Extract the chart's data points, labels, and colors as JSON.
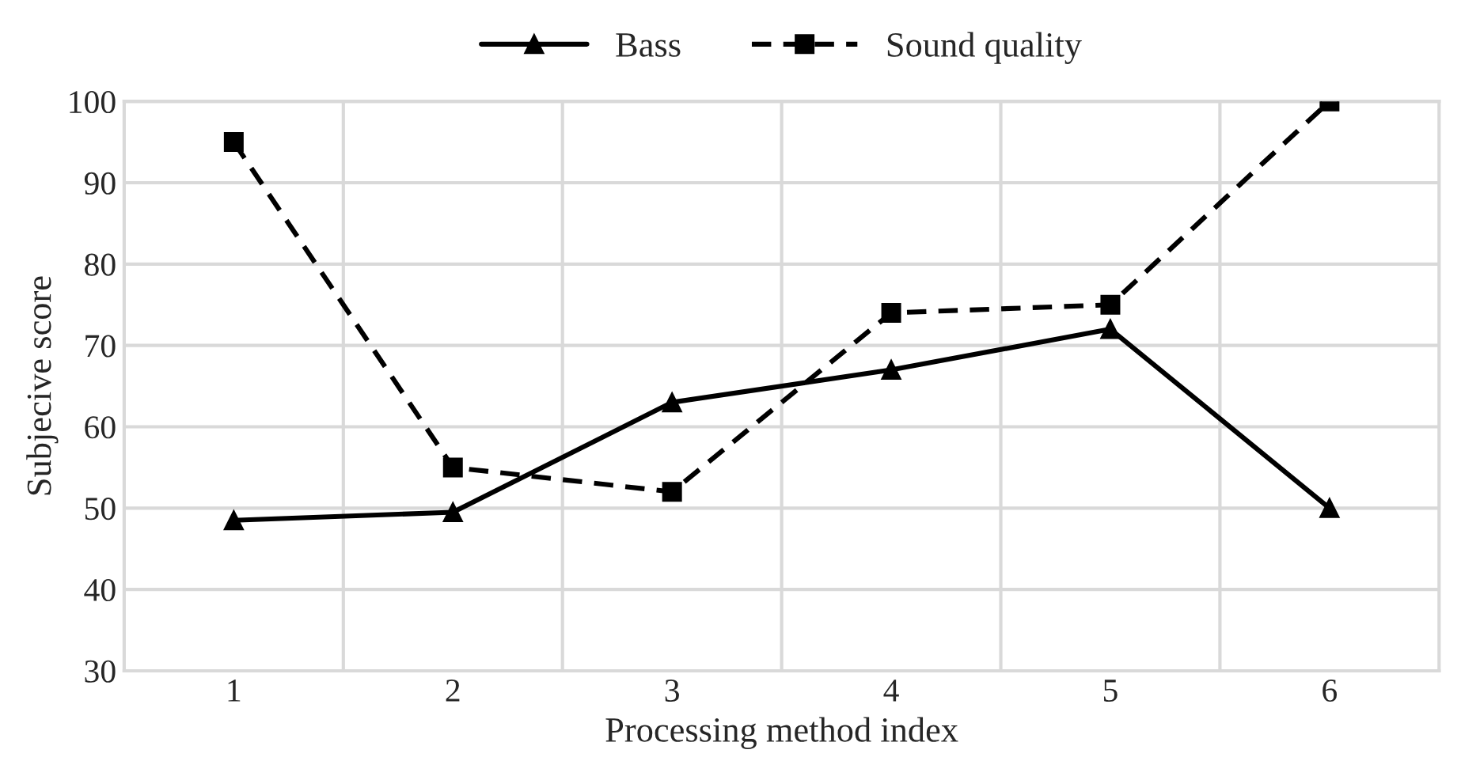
{
  "chart_data": {
    "type": "line",
    "xlabel": "Processing method index",
    "ylabel": "Subjecive score",
    "categories": [
      "1",
      "2",
      "3",
      "4",
      "5",
      "6"
    ],
    "series": [
      {
        "name": "Bass",
        "color": "#000000",
        "marker": "triangle",
        "line_style": "solid",
        "values": [
          48.5,
          49.5,
          63,
          67,
          72,
          50
        ]
      },
      {
        "name": "Sound quality",
        "color": "#000000",
        "marker": "square",
        "line_style": "dashed",
        "values": [
          95,
          55,
          52,
          74,
          75,
          100
        ]
      }
    ],
    "ylim": [
      30,
      100
    ],
    "yticks": [
      30,
      40,
      50,
      60,
      70,
      80,
      90,
      100
    ],
    "grid": true,
    "legend": "top"
  }
}
